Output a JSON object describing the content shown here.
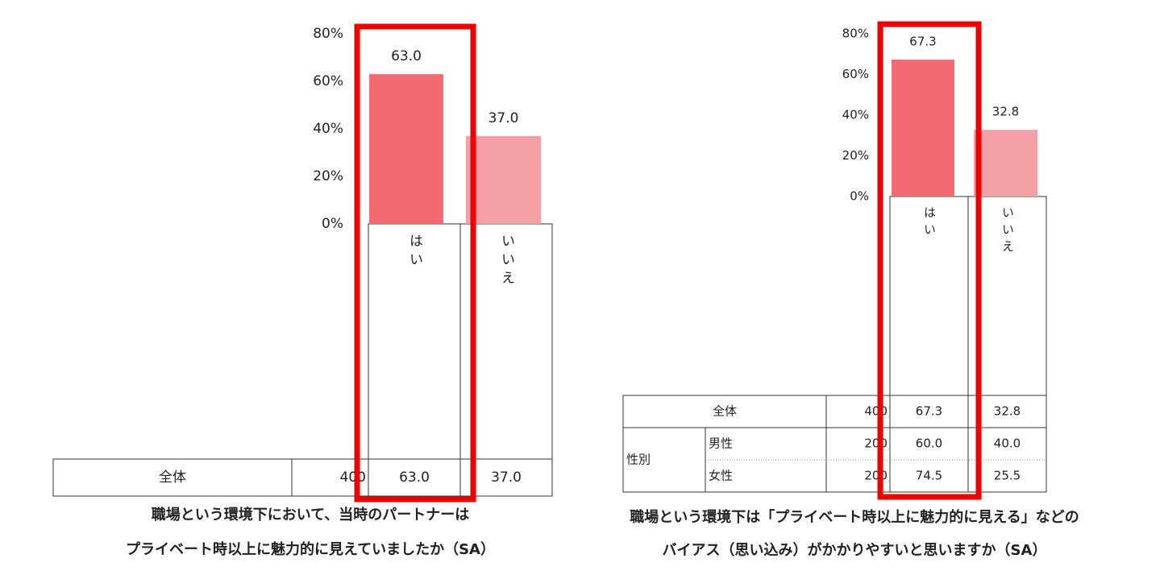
{
  "chart_data": [
    {
      "type": "bar",
      "categories": [
        "はい",
        "いいえ"
      ],
      "values": [
        63.0,
        37.0
      ],
      "value_labels": [
        "63.0",
        "37.0"
      ],
      "colors": [
        "#f26a72",
        "#f4a0a6"
      ],
      "ylim": [
        0,
        80
      ],
      "yticks": [
        {
          "value": 0,
          "label": "0%"
        },
        {
          "value": 20,
          "label": "20%"
        },
        {
          "value": 40,
          "label": "40%"
        },
        {
          "value": 60,
          "label": "60%"
        },
        {
          "value": 80,
          "label": "80%"
        }
      ],
      "table": [
        {
          "label": "全体",
          "n": "400",
          "cells": [
            "63.0",
            "37.0"
          ]
        }
      ],
      "caption": [
        "職場という環境下において、当時のパートナーは",
        "プライベート時以上に魅力的に見えていましたか（SA）"
      ]
    },
    {
      "type": "bar",
      "categories": [
        "はい",
        "いいえ"
      ],
      "values": [
        67.3,
        32.8
      ],
      "value_labels": [
        "67.3",
        "32.8"
      ],
      "colors": [
        "#f26a72",
        "#f4a0a6"
      ],
      "ylim": [
        0,
        80
      ],
      "yticks": [
        {
          "value": 0,
          "label": "0%"
        },
        {
          "value": 20,
          "label": "20%"
        },
        {
          "value": 40,
          "label": "40%"
        },
        {
          "value": 60,
          "label": "60%"
        },
        {
          "value": 80,
          "label": "80%"
        }
      ],
      "table": [
        {
          "label": "全体",
          "n": "400",
          "cells": [
            "67.3",
            "32.8"
          ]
        },
        {
          "group": "性別",
          "rows": [
            {
              "label": "男性",
              "n": "200",
              "cells": [
                "60.0",
                "40.0"
              ]
            },
            {
              "label": "女性",
              "n": "200",
              "cells": [
                "74.5",
                "25.5"
              ]
            }
          ]
        }
      ],
      "caption": [
        "職場という環境下は「プライベート時以上に魅力的に見える」などの",
        "バイアス（思い込み）がかかりやすいと思いますか（SA）"
      ]
    }
  ]
}
